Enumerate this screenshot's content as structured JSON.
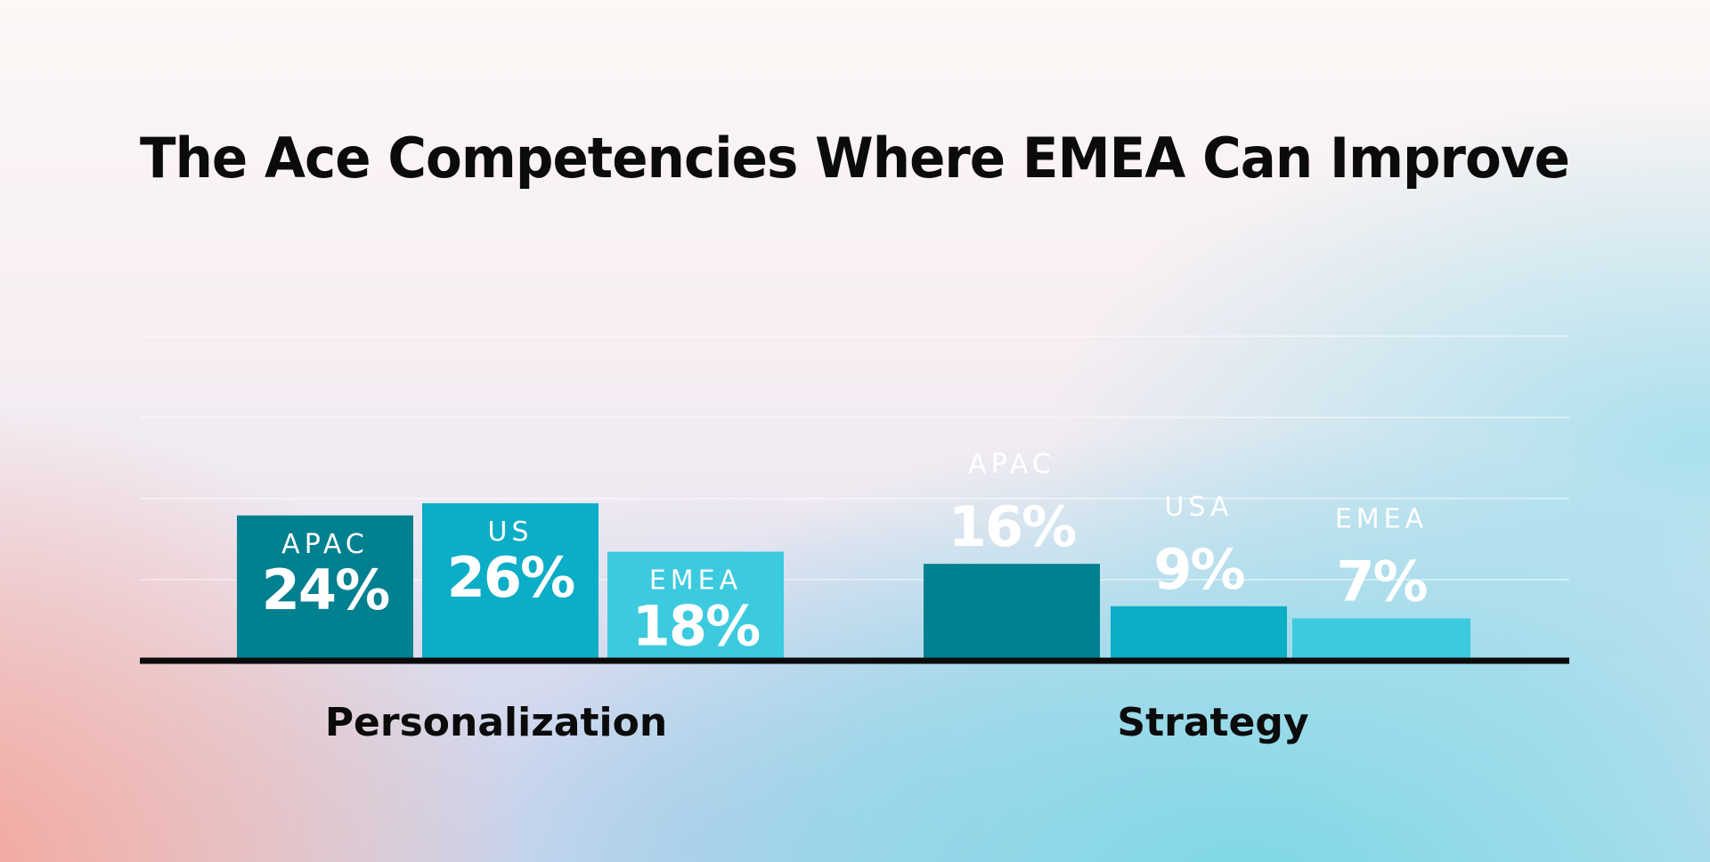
{
  "chart_data": {
    "type": "bar",
    "title": "The Ace Competencies Where EMEA Can Improve",
    "xlabel": "",
    "ylabel": "",
    "ylim": [
      0,
      55
    ],
    "grid": true,
    "categories": [
      "Personalization",
      "Strategy"
    ],
    "groups": [
      {
        "category": "Personalization",
        "bars": [
          {
            "region": "APAC",
            "value": 24,
            "label": "24%",
            "color": "#01808f",
            "label_position": "inside"
          },
          {
            "region": "US",
            "value": 26,
            "label": "26%",
            "color": "#0cadc6",
            "label_position": "inside"
          },
          {
            "region": "EMEA",
            "value": 18,
            "label": "18%",
            "color": "#3ccadf",
            "label_position": "inside"
          }
        ]
      },
      {
        "category": "Strategy",
        "bars": [
          {
            "region": "APAC",
            "value": 16,
            "label": "16%",
            "color": "#01808f",
            "label_position": "above"
          },
          {
            "region": "USA",
            "value": 9,
            "label": "9%",
            "color": "#0cadc6",
            "label_position": "above"
          },
          {
            "region": "EMEA",
            "value": 7,
            "label": "7%",
            "color": "#3ccadf",
            "label_position": "above"
          }
        ]
      }
    ]
  },
  "colors": {
    "baseline": "#0b0b0b",
    "gridline": "#ffffff",
    "title": "#0b0b0b"
  }
}
